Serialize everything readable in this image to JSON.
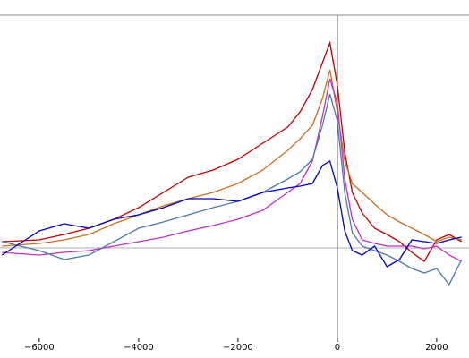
{
  "chart_data": {
    "type": "line",
    "x": [
      -6750,
      -6000,
      -5500,
      -5000,
      -4500,
      -4000,
      -3500,
      -3000,
      -2500,
      -2000,
      -1500,
      -1000,
      -750,
      -500,
      -300,
      -150,
      0,
      150,
      300,
      500,
      750,
      1000,
      1250,
      1500,
      1750,
      2000,
      2250,
      2500
    ],
    "series": [
      {
        "color": "#c00000",
        "values": [
          0.07,
          0.09,
          0.15,
          0.22,
          0.32,
          0.45,
          0.62,
          0.79,
          0.87,
          0.99,
          1.17,
          1.35,
          1.52,
          1.77,
          2.07,
          2.29,
          1.82,
          1.07,
          0.62,
          0.39,
          0.22,
          0.15,
          0.07,
          -0.05,
          -0.15,
          0.09,
          0.15,
          0.07
        ]
      },
      {
        "color": "#c87020",
        "values": [
          0.02,
          0.05,
          0.09,
          0.15,
          0.27,
          0.37,
          0.47,
          0.55,
          0.62,
          0.72,
          0.87,
          1.09,
          1.22,
          1.37,
          1.67,
          1.99,
          1.52,
          0.97,
          0.72,
          0.62,
          0.49,
          0.37,
          0.29,
          0.22,
          0.15,
          0.07,
          0.12,
          0.09
        ]
      },
      {
        "color": "#c030c0",
        "values": [
          -0.05,
          -0.08,
          -0.05,
          -0.03,
          0.02,
          0.07,
          0.12,
          0.19,
          0.25,
          0.32,
          0.42,
          0.62,
          0.72,
          0.97,
          1.47,
          1.89,
          1.62,
          0.77,
          0.32,
          0.09,
          0.05,
          0.02,
          0.02,
          0.02,
          -0.01,
          0.02,
          -0.08,
          -0.15
        ]
      },
      {
        "color": "#4a7aaa",
        "values": [
          0.07,
          -0.03,
          -0.13,
          -0.08,
          0.07,
          0.22,
          0.29,
          0.37,
          0.45,
          0.52,
          0.62,
          0.77,
          0.85,
          0.99,
          1.37,
          1.72,
          1.42,
          0.62,
          0.17,
          0.02,
          -0.03,
          -0.08,
          -0.15,
          -0.23,
          -0.28,
          -0.23,
          -0.41,
          -0.13
        ]
      },
      {
        "color": "#0000c0",
        "values": [
          -0.08,
          0.19,
          0.27,
          0.22,
          0.32,
          0.37,
          0.45,
          0.55,
          0.55,
          0.52,
          0.62,
          0.67,
          0.69,
          0.72,
          0.92,
          0.97,
          0.67,
          0.19,
          -0.03,
          -0.08,
          0.02,
          -0.21,
          -0.13,
          0.09,
          0.07,
          0.05,
          0.09,
          0.12
        ]
      }
    ],
    "xlim": [
      -6790,
      2650
    ],
    "ylim": [
      -1.01,
      2.6
    ],
    "xticks": [
      {
        "value": -6000,
        "label": "−6000"
      },
      {
        "value": -4000,
        "label": "−4000"
      },
      {
        "value": -2000,
        "label": "−2000"
      },
      0,
      2000
    ],
    "hline": 0,
    "vline": 0
  }
}
